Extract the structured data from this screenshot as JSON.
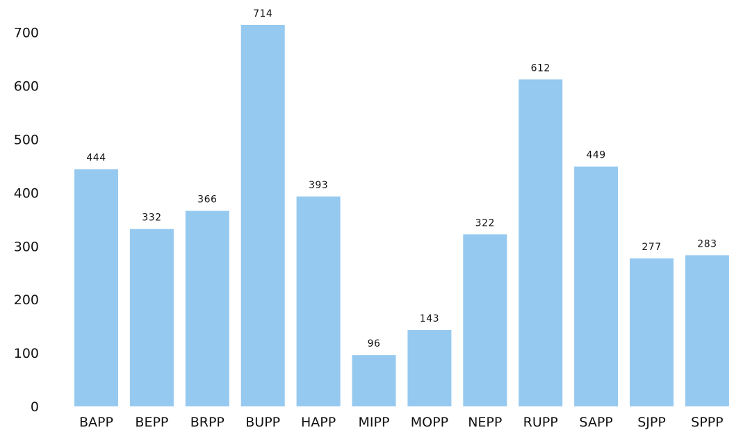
{
  "chart_data": {
    "type": "bar",
    "title": "",
    "xlabel": "",
    "ylabel": "",
    "categories": [
      "BAPP",
      "BEPP",
      "BRPP",
      "BUPP",
      "HAPP",
      "MIPP",
      "MOPP",
      "NEPP",
      "RUPP",
      "SAPP",
      "SJPP",
      "SPPP"
    ],
    "values": [
      444,
      332,
      366,
      714,
      393,
      96,
      143,
      322,
      612,
      449,
      277,
      283
    ],
    "data_labels": [
      "444",
      "332",
      "366",
      "714",
      "393",
      "96",
      "143",
      "322",
      "612",
      "449",
      "277",
      "283"
    ],
    "ylim": [
      0,
      700
    ],
    "yticks": [
      "0",
      "100",
      "200",
      "300",
      "400",
      "500",
      "600",
      "700"
    ],
    "grid": false,
    "bar_color": "#95c9f0"
  }
}
